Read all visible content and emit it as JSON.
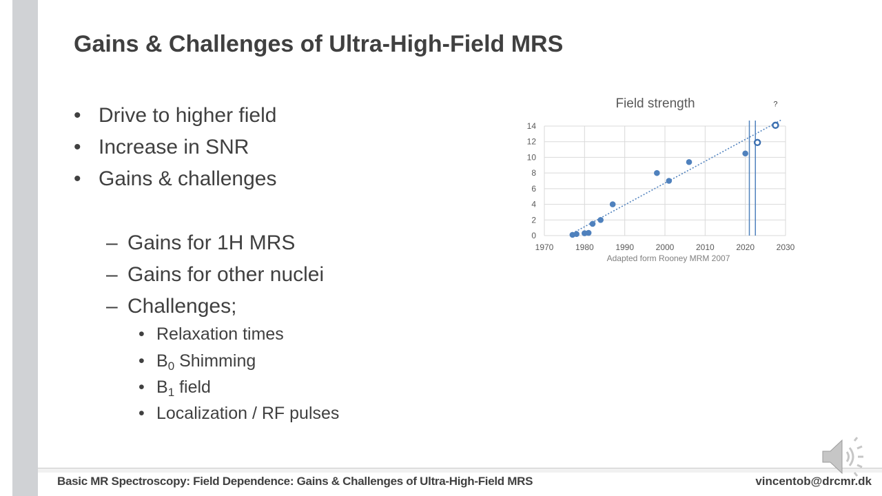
{
  "slide": {
    "title": "Gains & Challenges of Ultra-High-Field MRS",
    "bullets": [
      "Drive to higher field",
      "Increase in SNR",
      "Gains & challenges"
    ],
    "sub_bullets": [
      "Gains for 1H MRS",
      "Gains for other nuclei",
      "Challenges;"
    ],
    "sub_sub_bullets": [
      {
        "pre": "Relaxation times",
        "sub": "",
        "post": ""
      },
      {
        "pre": "B",
        "sub": "0",
        "post": " Shimming"
      },
      {
        "pre": "B",
        "sub": "1",
        "post": " field"
      },
      {
        "pre": "Localization / RF pulses",
        "sub": "",
        "post": ""
      }
    ],
    "bullet_symbol": "•",
    "dash_symbol": "–"
  },
  "footer": {
    "left": "Basic MR Spectroscopy: Field Dependence: Gains & Challenges of Ultra-High-Field MRS",
    "right": "vincentob@drcmr.dk"
  },
  "icons": {
    "audio": "speaker-icon"
  },
  "colors": {
    "text": "#404040",
    "accent": "#4f81bd",
    "footer_line": "#c8c8c8"
  },
  "chart_data": {
    "type": "scatter",
    "title": "Field strength",
    "source": "Adapted form Rooney MRM 2007",
    "xlim": [
      1970,
      2030
    ],
    "ylim": [
      0,
      14
    ],
    "xticks": [
      1970,
      1980,
      1990,
      2000,
      2010,
      2020,
      2030
    ],
    "yticks": [
      0,
      2,
      4,
      6,
      8,
      10,
      12,
      14
    ],
    "grid": true,
    "series": [
      {
        "points": [
          {
            "x": 1977,
            "y": 0.1
          },
          {
            "x": 1978,
            "y": 0.2
          },
          {
            "x": 1980,
            "y": 0.3
          },
          {
            "x": 1981,
            "y": 0.35
          },
          {
            "x": 1982,
            "y": 1.5
          },
          {
            "x": 1984,
            "y": 2
          },
          {
            "x": 1987,
            "y": 4
          },
          {
            "x": 1998,
            "y": 8
          },
          {
            "x": 2001,
            "y": 7
          },
          {
            "x": 2006,
            "y": 9.4
          },
          {
            "x": 2020,
            "y": 10.5
          },
          {
            "x": 2023,
            "y": 11.9
          },
          {
            "x": 2027.5,
            "y": 14.1
          }
        ],
        "hollow_points": [
          2023,
          2027.5
        ]
      }
    ],
    "trendline": {
      "from": [
        1977,
        0.3
      ],
      "to": [
        2029,
        14.8
      ],
      "style": "dotted"
    },
    "vertical_lines": [
      {
        "x": 2021
      },
      {
        "x": 2022.5
      }
    ],
    "annotations": [
      {
        "text": "?",
        "x": 2027.5,
        "y": 16.5
      }
    ]
  }
}
